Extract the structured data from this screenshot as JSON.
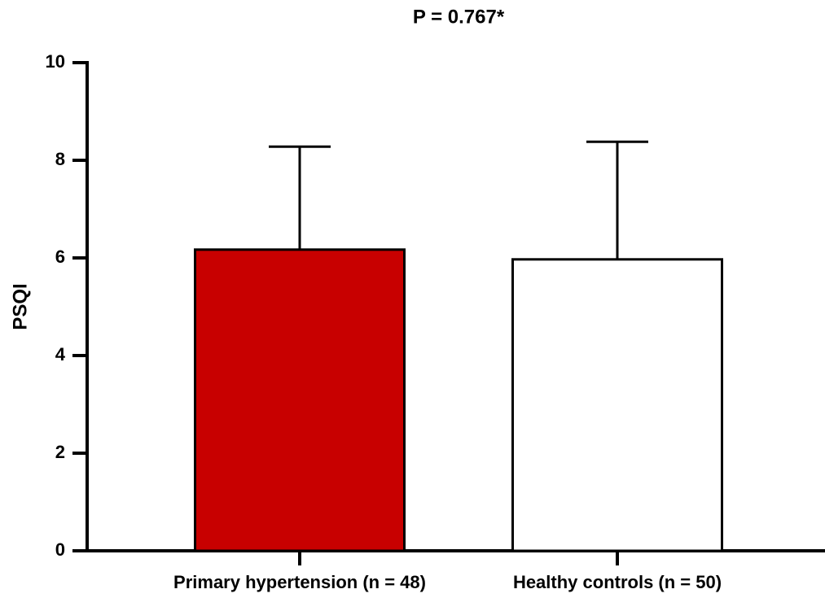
{
  "chart_data": {
    "type": "bar",
    "title": "P = 0.767*",
    "ylabel": "PSQI",
    "categories": [
      "Primary hypertension (n = 48)",
      "Healthy controls (n = 50)"
    ],
    "values": [
      6.17,
      5.97
    ],
    "errors": [
      2.11,
      2.41
    ],
    "colors": [
      "#c80000",
      "#ffffff"
    ],
    "ylim": [
      0,
      10
    ],
    "yticks": [
      0,
      2,
      4,
      6,
      8,
      10
    ]
  }
}
